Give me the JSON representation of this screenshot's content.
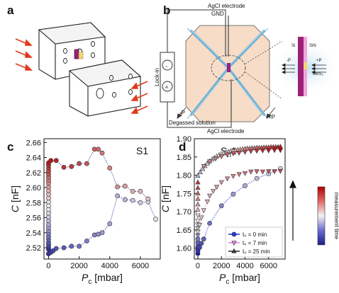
{
  "panels": {
    "a": {
      "label": "a"
    },
    "b": {
      "label": "b",
      "gnd": "GND",
      "electrode_top": "AgCl electrode",
      "electrode_bottom": "AgCl electrode",
      "lockin": "Lock-in",
      "source_symbol": "~",
      "ammeter_symbol": "A",
      "minus_p": "-P",
      "plus_p": "+P",
      "degassed": "Degassed solution",
      "inset_minus_p": "-P",
      "inset_plus_p": "+P",
      "si": "Si",
      "sin": "SiN",
      "mos2": "MoS₂"
    },
    "c": {
      "label": "c",
      "tag": "S1"
    },
    "d": {
      "label": "d",
      "tag_main": "S",
      "tag_sub": "h",
      "tag_end": "1"
    }
  },
  "colorbar": {
    "label": "measurement time",
    "colors": [
      "#b40000",
      "#f0f0f0",
      "#1c1c8c"
    ]
  },
  "chart_data": [
    {
      "type": "scatter",
      "panel": "c",
      "xlabel_main": "P",
      "xlabel_sub": "c",
      "xlabel_unit": " [mbar]",
      "ylabel_main": "C",
      "ylabel_unit": " [nF]",
      "xlim": [
        -300,
        7300
      ],
      "ylim": [
        2.505,
        2.665
      ],
      "xticks": [
        0,
        2000,
        4000,
        6000
      ],
      "yticks": [
        2.52,
        2.54,
        2.56,
        2.58,
        2.6,
        2.62,
        2.64,
        2.66
      ],
      "ytick_labels": [
        "2.52",
        "2.54",
        "2.56",
        "2.58",
        "2.60",
        "2.62",
        "2.64",
        "2.66"
      ],
      "vertical_column_y": [
        2.512,
        2.518,
        2.521,
        2.524,
        2.527,
        2.531,
        2.535,
        2.539,
        2.543,
        2.547,
        2.551,
        2.556,
        2.561,
        2.566,
        2.571,
        2.576,
        2.581,
        2.586,
        2.591,
        2.596,
        2.601,
        2.606,
        2.61,
        2.614,
        2.618,
        2.622,
        2.626,
        2.63,
        2.633
      ],
      "series": [
        {
          "x": [
            0,
            150,
            300,
            500,
            1000,
            1500,
            2000,
            2500,
            3000,
            3250,
            3500,
            4000,
            4500,
            5000,
            5500,
            6000,
            6500,
            7000
          ],
          "y": [
            2.512,
            2.514,
            2.516,
            2.519,
            2.52,
            2.522,
            2.522,
            2.529,
            2.537,
            2.538,
            2.54,
            2.552,
            2.589,
            2.584,
            2.583,
            2.58,
            2.581,
            2.558
          ]
        },
        {
          "x": [
            150,
            500,
            1000,
            1500,
            2000,
            2500,
            3000,
            3250,
            3500,
            4000,
            4500,
            5000,
            5500,
            6000,
            6500
          ],
          "y": [
            2.636,
            2.636,
            2.627,
            2.628,
            2.632,
            2.632,
            2.651,
            2.651,
            2.646,
            2.626,
            2.601,
            2.602,
            2.595,
            2.595,
            2.585
          ]
        }
      ]
    },
    {
      "type": "scatter",
      "panel": "d",
      "xlabel_main": "P",
      "xlabel_sub": "c",
      "xlabel_unit": " [mbar]",
      "ylabel_main": "C",
      "ylabel_unit": " [nF]",
      "xlim": [
        -300,
        7400
      ],
      "ylim": [
        1.57,
        1.9
      ],
      "xticks": [
        0,
        2000,
        4000,
        6000
      ],
      "yticks": [
        1.6,
        1.65,
        1.7,
        1.75,
        1.8,
        1.85,
        1.9
      ],
      "ytick_labels": [
        "1.60",
        "1.65",
        "1.70",
        "1.75",
        "1.80",
        "1.85",
        "1.90"
      ],
      "vertical_column_y": [
        1.585,
        1.595,
        1.605,
        1.615,
        1.625,
        1.635,
        1.645,
        1.655,
        1.665,
        1.675,
        1.69,
        1.705,
        1.72,
        1.735,
        1.75,
        1.765,
        1.78
      ],
      "series": [
        {
          "name": "t₀ = 0 min",
          "marker": "circle",
          "line_color": "#2b3bd6",
          "x": [
            0,
            150,
            300,
            500,
            1000,
            2000,
            3000,
            4000,
            5000,
            6000,
            7000
          ],
          "y": [
            1.593,
            1.602,
            1.613,
            1.625,
            1.668,
            1.716,
            1.748,
            1.771,
            1.791,
            1.804,
            1.818
          ]
        },
        {
          "name": "t₀ = 7 min",
          "marker": "triangle-down",
          "line_color": "#d98be0",
          "x": [
            0,
            150,
            300,
            500,
            800,
            1000,
            1300,
            1600,
            2000,
            2500,
            3000,
            3500,
            4000,
            4500,
            5000,
            5500,
            6000,
            6500,
            7000
          ],
          "y": [
            1.645,
            1.664,
            1.684,
            1.704,
            1.728,
            1.744,
            1.757,
            1.768,
            1.781,
            1.791,
            1.798,
            1.803,
            1.806,
            1.81,
            1.811,
            1.81,
            1.811,
            1.811,
            1.812
          ]
        },
        {
          "name": "t₀ = 25 min",
          "marker": "triangle-up",
          "line_color": "#333333",
          "x": [
            0,
            200,
            400,
            600,
            800,
            1000,
            1200,
            1400,
            1600,
            1800,
            2000,
            2200,
            2400,
            2600,
            2800,
            3000,
            3200,
            3400,
            3600,
            3800,
            4000,
            4200,
            4400,
            4600,
            4800,
            5000,
            5200,
            5400,
            5600,
            5800,
            6000,
            6200,
            6400,
            6600,
            6800,
            7000
          ],
          "y": [
            1.798,
            1.808,
            1.817,
            1.825,
            1.832,
            1.838,
            1.843,
            1.847,
            1.851,
            1.855,
            1.858,
            1.86,
            1.862,
            1.864,
            1.866,
            1.867,
            1.868,
            1.869,
            1.87,
            1.871,
            1.872,
            1.873,
            1.873,
            1.874,
            1.874,
            1.875,
            1.875,
            1.875,
            1.876,
            1.876,
            1.876,
            1.877,
            1.877,
            1.877,
            1.877,
            1.878
          ]
        },
        {
          "name": "",
          "marker": "triangle-down",
          "line_color": "#d98be0",
          "x": [
            500,
            1000,
            1500,
            2000,
            2500,
            3000,
            3500,
            4000,
            4500,
            5000,
            5500,
            6000,
            6500,
            7000
          ],
          "y": [
            1.825,
            1.838,
            1.846,
            1.852,
            1.857,
            1.86,
            1.862,
            1.864,
            1.866,
            1.867,
            1.868,
            1.868,
            1.869,
            1.869
          ]
        }
      ]
    }
  ]
}
